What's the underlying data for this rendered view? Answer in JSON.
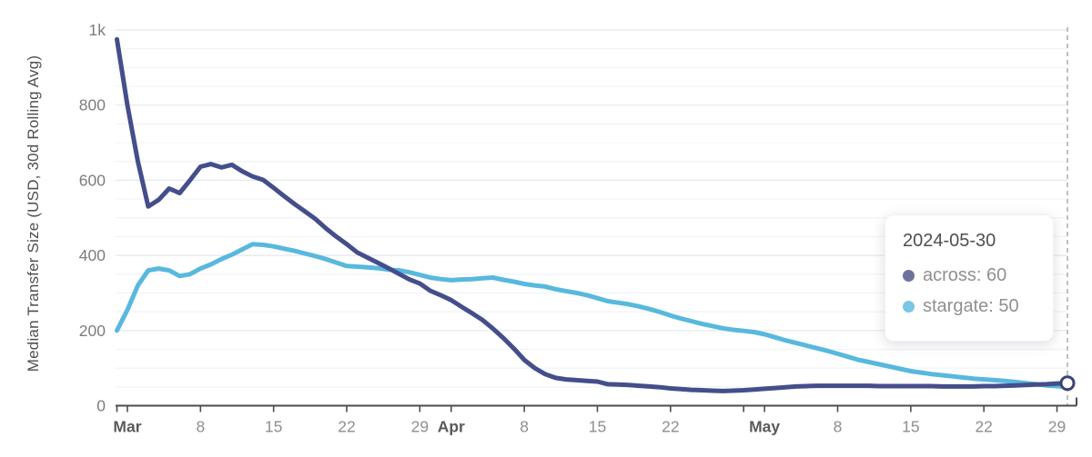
{
  "chart_data": {
    "type": "line",
    "title": "",
    "y_axis_title": "Median Transfer Size (USD, 30d Rolling Avg)",
    "x_start_date": "2024-02-29",
    "x_end_date": "2024-05-30",
    "frequency": "daily",
    "ylim": [
      0,
      1000
    ],
    "grid": {
      "minor_step": 50,
      "major_step": 200,
      "minor_color": "#f1f3f9",
      "major_color": "#e3e7f0"
    },
    "axis_color": "#4c4c4c",
    "tick_label_color": "#8e8e8e",
    "month_label_color": "#5a5a5a",
    "y_label_color": "#7d7d7d",
    "cursor_line_color": "#b0b0b0",
    "y_ticks": [
      {
        "value": 0,
        "label": "0"
      },
      {
        "value": 200,
        "label": "200"
      },
      {
        "value": 400,
        "label": "400"
      },
      {
        "value": 600,
        "label": "600"
      },
      {
        "value": 800,
        "label": "800"
      },
      {
        "value": 1000,
        "label": "1k"
      }
    ],
    "x_ticks": [
      {
        "day": 0,
        "label": "",
        "bold": false
      },
      {
        "day": 1,
        "label": "Mar",
        "bold": true
      },
      {
        "day": 8,
        "label": "8",
        "bold": false
      },
      {
        "day": 15,
        "label": "15",
        "bold": false
      },
      {
        "day": 22,
        "label": "22",
        "bold": false
      },
      {
        "day": 29,
        "label": "29",
        "bold": false
      },
      {
        "day": 32,
        "label": "Apr",
        "bold": true
      },
      {
        "day": 39,
        "label": "8",
        "bold": false
      },
      {
        "day": 46,
        "label": "15",
        "bold": false
      },
      {
        "day": 53,
        "label": "22",
        "bold": false
      },
      {
        "day": 60,
        "label": "",
        "bold": false
      },
      {
        "day": 62,
        "label": "May",
        "bold": true
      },
      {
        "day": 69,
        "label": "8",
        "bold": false
      },
      {
        "day": 76,
        "label": "15",
        "bold": false
      },
      {
        "day": 83,
        "label": "22",
        "bold": false
      },
      {
        "day": 90,
        "label": "29",
        "bold": false
      }
    ],
    "cursor": {
      "date": "2024-05-30",
      "day": 91,
      "style": "dashed-vertical"
    },
    "end_marker": {
      "series": "across",
      "value": 60,
      "fill": "#ffffff",
      "stroke": "#3b4377"
    },
    "series": [
      {
        "name": "across",
        "color": "#444e8b",
        "dot_color": "#6e739e",
        "values": [
          975,
          800,
          650,
          530,
          548,
          578,
          566,
          600,
          636,
          643,
          634,
          641,
          624,
          610,
          601,
          580,
          558,
          537,
          517,
          497,
          472,
          450,
          430,
          408,
          394,
          380,
          366,
          351,
          336,
          325,
          306,
          294,
          281,
          263,
          246,
          228,
          205,
          180,
          152,
          122,
          100,
          84,
          74,
          70,
          68,
          66,
          64,
          57,
          56,
          55,
          53,
          51,
          49,
          46,
          44,
          42,
          41,
          40,
          39,
          40,
          41,
          43,
          45,
          47,
          49,
          51,
          52,
          53,
          53,
          53,
          53,
          53,
          53,
          52,
          52,
          52,
          52,
          52,
          52,
          51,
          51,
          51,
          51,
          52,
          52,
          53,
          54,
          55,
          56,
          57,
          59,
          60
        ]
      },
      {
        "name": "stargate",
        "color": "#58b8de",
        "dot_color": "#7cc5e4",
        "values": [
          200,
          255,
          320,
          360,
          365,
          360,
          345,
          350,
          365,
          376,
          390,
          402,
          416,
          430,
          428,
          424,
          418,
          412,
          405,
          398,
          390,
          381,
          372,
          370,
          368,
          366,
          362,
          360,
          355,
          348,
          341,
          337,
          334,
          336,
          337,
          339,
          341,
          335,
          330,
          324,
          320,
          317,
          310,
          305,
          300,
          294,
          286,
          278,
          274,
          270,
          264,
          257,
          249,
          240,
          232,
          225,
          218,
          212,
          206,
          202,
          199,
          196,
          190,
          182,
          174,
          167,
          160,
          153,
          146,
          138,
          130,
          122,
          116,
          110,
          104,
          98,
          92,
          88,
          84,
          81,
          78,
          75,
          72,
          70,
          68,
          66,
          63,
          60,
          57,
          54,
          52,
          50
        ]
      }
    ]
  },
  "tooltip": {
    "date": "2024-05-30",
    "rows": [
      {
        "series": "across",
        "value": "60",
        "display": "across: 60"
      },
      {
        "series": "stargate",
        "value": "50",
        "display": "stargate: 50"
      }
    ]
  }
}
